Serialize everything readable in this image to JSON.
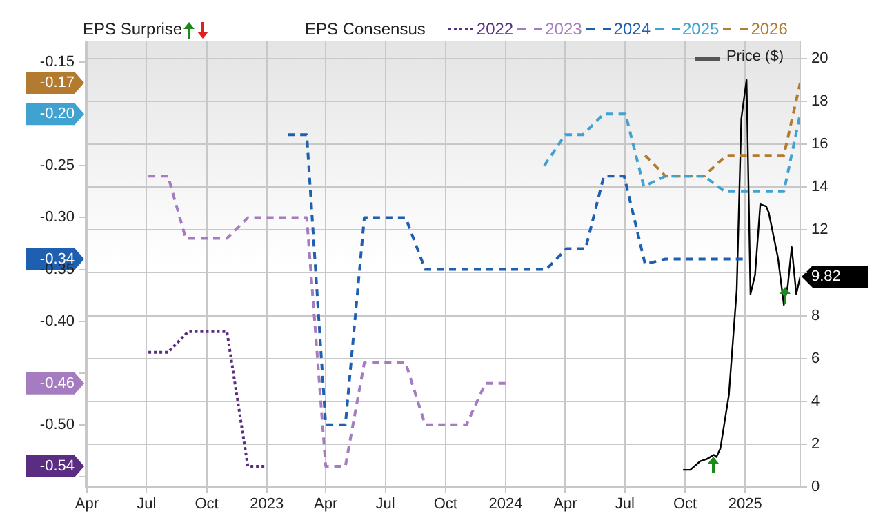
{
  "chart_data": {
    "type": "line",
    "legend_title": "EPS Consensus",
    "annotations": [
      "EPS Surprise"
    ],
    "legend": "top",
    "grid": true,
    "xlim": [
      "2022-03-30",
      "2025-03-26"
    ],
    "xticks": [
      {
        "value": "2022-04-01",
        "label": "Apr"
      },
      {
        "value": "2022-07-01",
        "label": "Jul"
      },
      {
        "value": "2022-10-01",
        "label": "Oct"
      },
      {
        "value": "2023-01-01",
        "label": "2023"
      },
      {
        "value": "2023-04-01",
        "label": "Apr"
      },
      {
        "value": "2023-07-01",
        "label": "Jul"
      },
      {
        "value": "2023-10-01",
        "label": "Oct"
      },
      {
        "value": "2024-01-01",
        "label": "2024"
      },
      {
        "value": "2024-04-01",
        "label": "Apr"
      },
      {
        "value": "2024-07-01",
        "label": "Jul"
      },
      {
        "value": "2024-10-01",
        "label": "Oct"
      },
      {
        "value": "2025-01-01",
        "label": "2025"
      }
    ],
    "ylim": [
      -0.56,
      -0.13
    ],
    "yticks": [
      {
        "value": -0.15,
        "label": "-0.15"
      },
      {
        "value": -0.17,
        "label": "-0.17"
      },
      {
        "value": -0.2,
        "label": "-0.20"
      },
      {
        "value": -0.25,
        "label": "-0.25"
      },
      {
        "value": -0.3,
        "label": "-0.30"
      },
      {
        "value": -0.34,
        "label": "-0.34"
      },
      {
        "value": -0.35,
        "label": "-0.35"
      },
      {
        "value": -0.4,
        "label": "-0.40"
      },
      {
        "value": -0.45,
        "label": null
      },
      {
        "value": -0.46,
        "label": "-0.46"
      },
      {
        "value": -0.5,
        "label": "-0.50"
      },
      {
        "value": -0.54,
        "label": "-0.54"
      },
      {
        "value": -0.55,
        "label": null
      }
    ],
    "y2lim": [
      0,
      20.8
    ],
    "y2ticks": [
      0,
      2,
      4,
      6,
      8,
      {
        "value": 9.82,
        "label": "9.82"
      },
      {
        "value": 10,
        "label": null
      },
      12,
      14,
      16,
      18,
      20
    ],
    "series": [
      {
        "name": "2022",
        "color": "#5a2d82",
        "line_style": "dotted",
        "x": [
          "2022-07-04",
          "2022-08-03",
          "2022-09-03",
          "2022-11-01",
          "2022-12-03",
          "2023-01-01"
        ],
        "values": [
          -0.43,
          -0.43,
          -0.41,
          -0.41,
          -0.54,
          -0.54
        ]
      },
      {
        "name": "2023",
        "color": "#a57cbf",
        "line_style": "dashed",
        "x": [
          "2022-07-04",
          "2022-08-03",
          "2022-08-30",
          "2022-11-01",
          "2022-12-03",
          "2023-03-03",
          "2023-04-01",
          "2023-05-01",
          "2023-05-30",
          "2023-08-01",
          "2023-08-31",
          "2023-11-02",
          "2023-12-01",
          "2024-01-02"
        ],
        "values": [
          -0.26,
          -0.26,
          -0.32,
          -0.32,
          -0.3,
          -0.3,
          -0.54,
          -0.54,
          -0.44,
          -0.44,
          -0.5,
          -0.5,
          -0.46,
          -0.46
        ]
      },
      {
        "name": "2024",
        "color": "#1f5fb0",
        "line_style": "dashed",
        "x": [
          "2023-02-02",
          "2023-03-03",
          "2023-04-01",
          "2023-05-01",
          "2023-05-30",
          "2023-08-01",
          "2023-08-31",
          "2024-03-03",
          "2024-04-03",
          "2024-05-02",
          "2024-05-30",
          "2024-06-30",
          "2024-08-01",
          "2024-09-01",
          "2024-11-05",
          "2024-12-01",
          "2025-01-01"
        ],
        "values": [
          -0.22,
          -0.22,
          -0.5,
          -0.5,
          -0.3,
          -0.3,
          -0.35,
          -0.35,
          -0.33,
          -0.33,
          -0.26,
          -0.26,
          -0.345,
          -0.34,
          -0.34,
          -0.34,
          -0.34
        ]
      },
      {
        "name": "2025",
        "color": "#3fa2d0",
        "line_style": "dashed",
        "x": [
          "2024-02-29",
          "2024-04-01",
          "2024-04-28",
          "2024-05-30",
          "2024-07-02",
          "2024-07-30",
          "2024-09-01",
          "2024-10-30",
          "2024-12-01",
          "2025-03-01",
          "2025-03-26"
        ],
        "values": [
          -0.25,
          -0.22,
          -0.22,
          -0.2,
          -0.2,
          -0.27,
          -0.26,
          -0.26,
          -0.275,
          -0.275,
          -0.2
        ]
      },
      {
        "name": "2026",
        "color": "#b27b30",
        "line_style": "dashed",
        "x": [
          "2024-08-01",
          "2024-09-01",
          "2024-10-30",
          "2024-12-03",
          "2025-03-01",
          "2025-03-26"
        ],
        "values": [
          -0.24,
          -0.26,
          -0.26,
          -0.24,
          -0.24,
          -0.17
        ]
      },
      {
        "name": "Price ($)",
        "color": "#000000",
        "line_style": "solid",
        "axis": "y2",
        "x": [
          "2024-09-28",
          "2024-10-09",
          "2024-10-24",
          "2024-11-03",
          "2024-11-14",
          "2024-11-18",
          "2024-11-24",
          "2024-12-07",
          "2024-12-19",
          "2024-12-26",
          "2025-01-03",
          "2025-01-09",
          "2025-01-16",
          "2025-01-24",
          "2025-02-02",
          "2025-02-06",
          "2025-02-20",
          "2025-03-01",
          "2025-03-07",
          "2025-03-13",
          "2025-03-20",
          "2025-03-26"
        ],
        "values": [
          0.8,
          0.8,
          1.2,
          1.3,
          1.5,
          1.4,
          1.8,
          4.3,
          9.2,
          17.2,
          19,
          9,
          9.9,
          13.2,
          13.1,
          12.8,
          10.7,
          8.5,
          9.4,
          11.2,
          9,
          9.82
        ]
      }
    ]
  }
}
